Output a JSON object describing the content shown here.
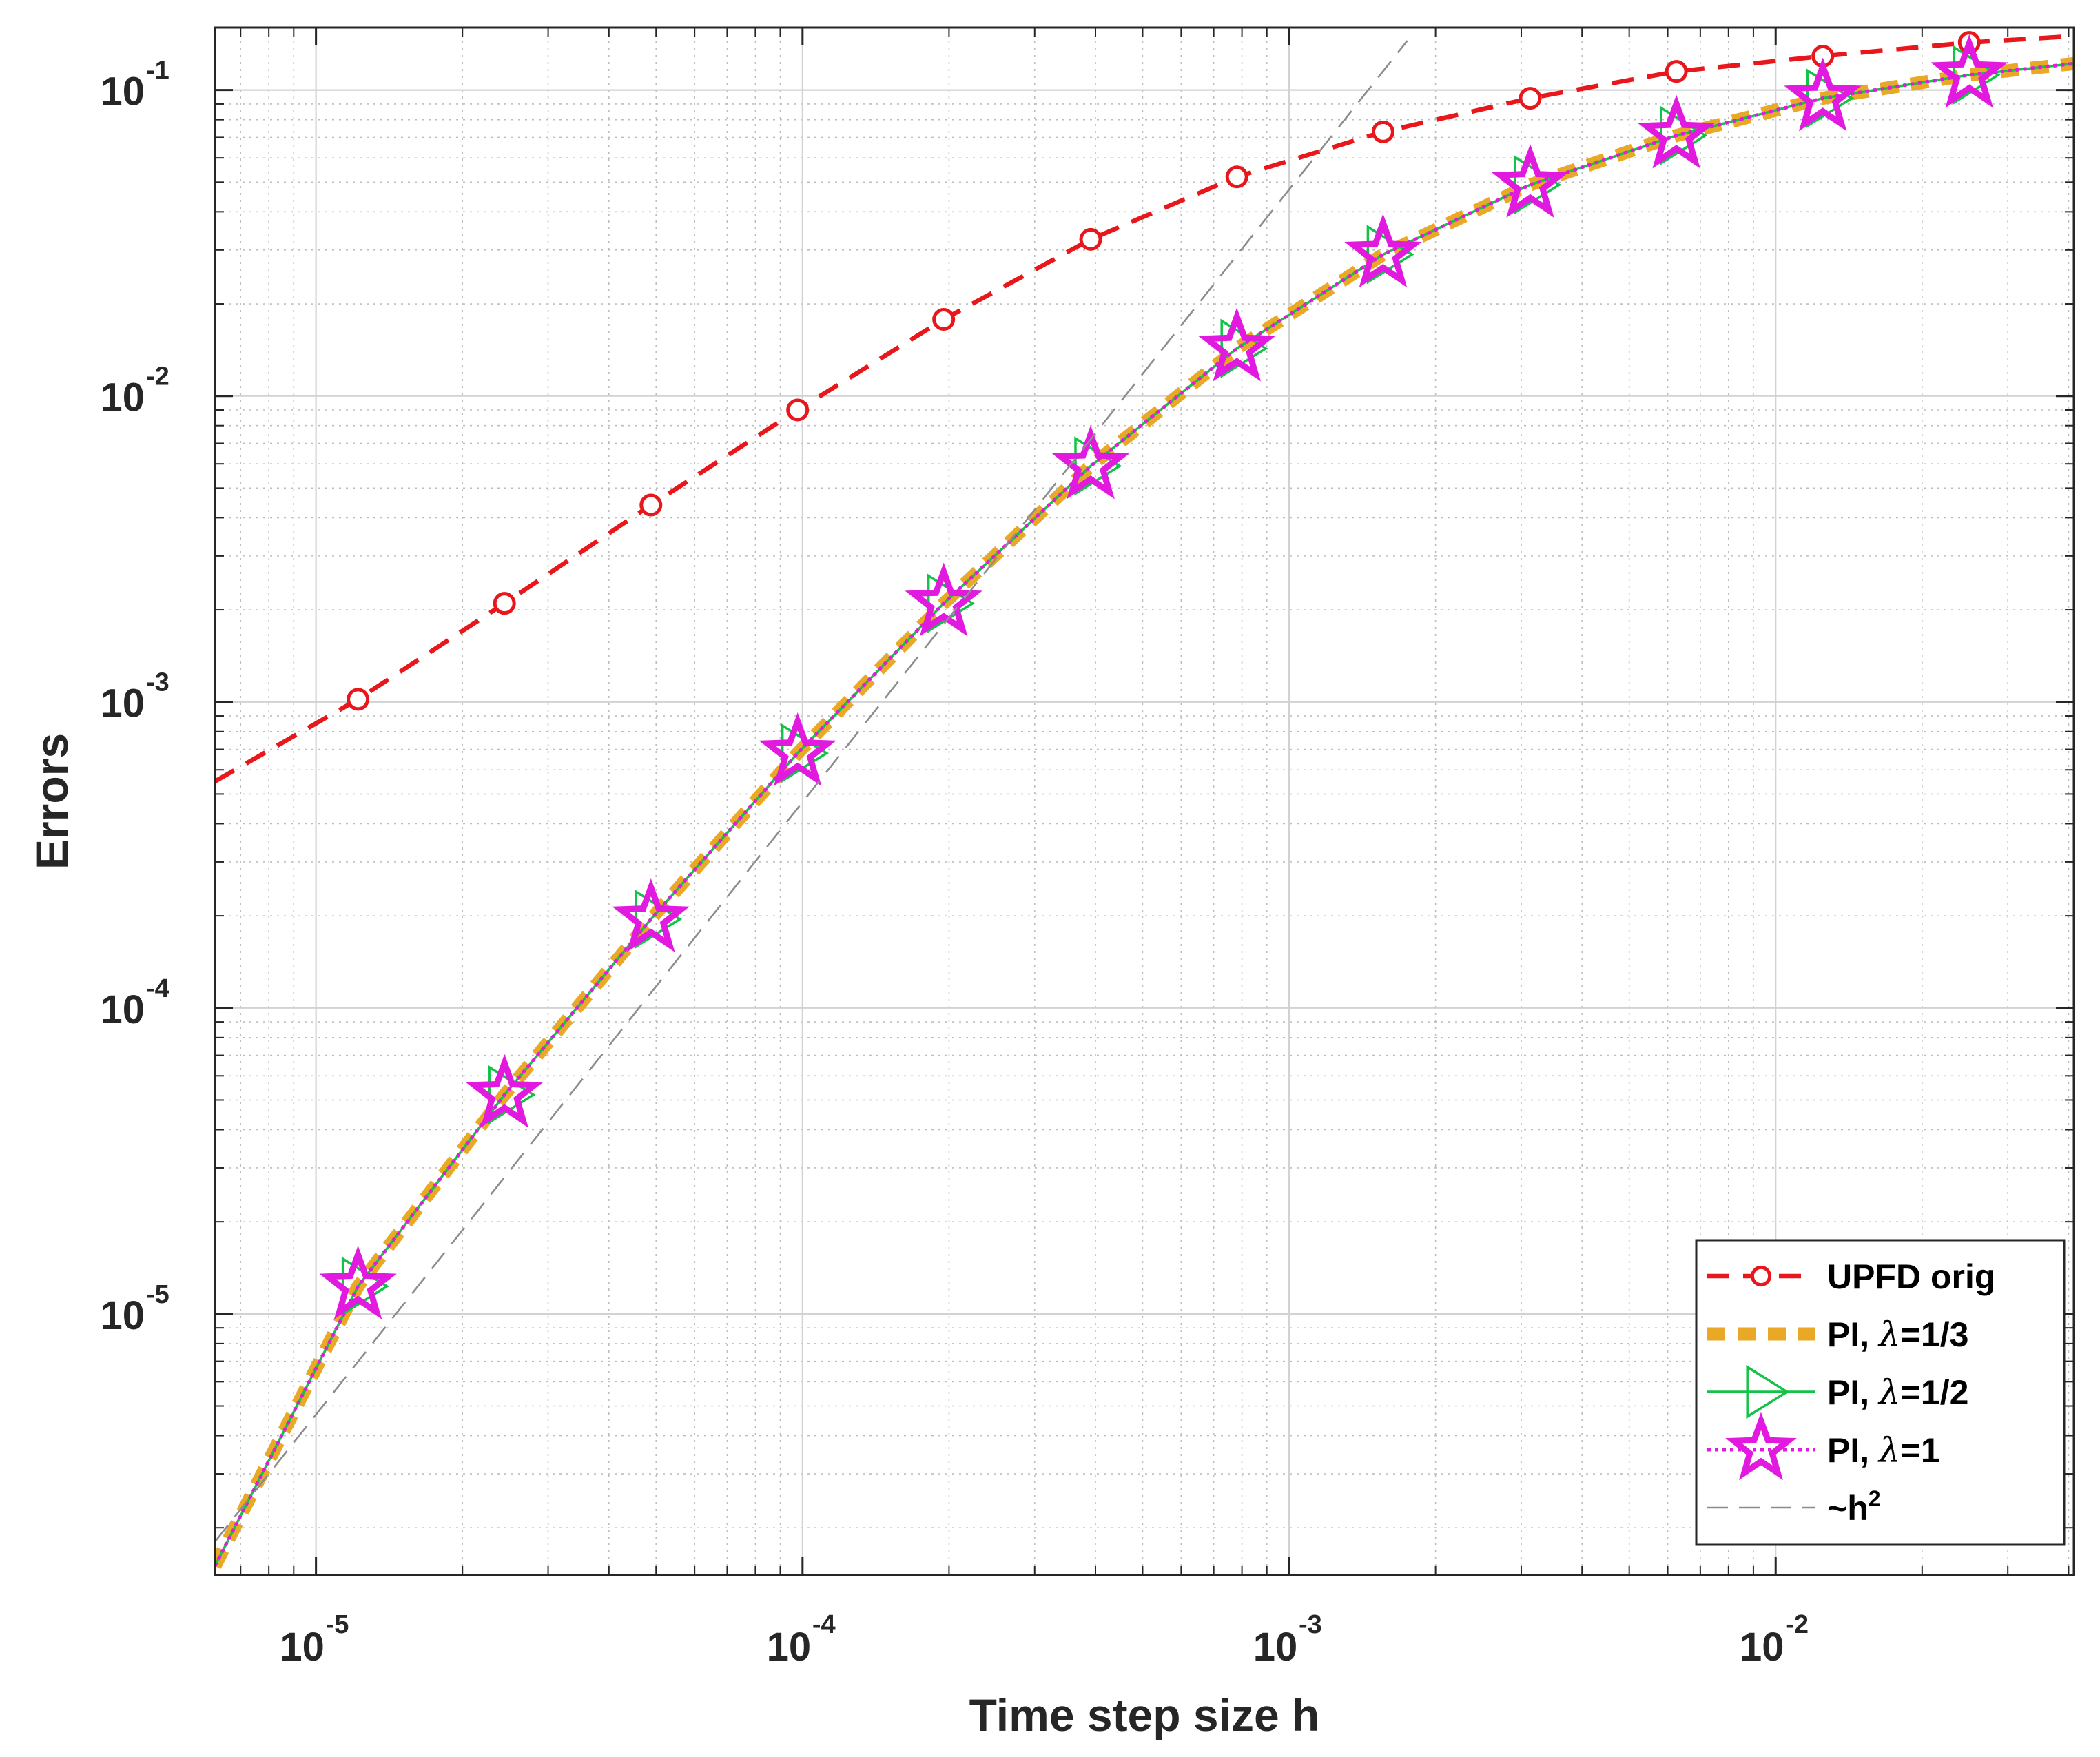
{
  "chart_data": {
    "type": "line",
    "scale": {
      "x": "log",
      "y": "log"
    },
    "xlabel": "Time step size h",
    "ylabel": "Errors",
    "xlim": [
      6.2e-06,
      0.041
    ],
    "ylim": [
      1.4e-06,
      0.16
    ],
    "grid": true,
    "minor_grid": true,
    "legend_position": "bottom-right",
    "x_ticks": [
      {
        "value": 1e-05,
        "mantissa": "10",
        "exponent": "-5"
      },
      {
        "value": 0.0001,
        "mantissa": "10",
        "exponent": "-4"
      },
      {
        "value": 0.001,
        "mantissa": "10",
        "exponent": "-3"
      },
      {
        "value": 0.01,
        "mantissa": "10",
        "exponent": "-2"
      }
    ],
    "y_ticks": [
      {
        "value": 1e-05,
        "mantissa": "10",
        "exponent": "-5"
      },
      {
        "value": 0.0001,
        "mantissa": "10",
        "exponent": "-4"
      },
      {
        "value": 0.001,
        "mantissa": "10",
        "exponent": "-3"
      },
      {
        "value": 0.01,
        "mantissa": "10",
        "exponent": "-2"
      },
      {
        "value": 0.1,
        "mantissa": "10",
        "exponent": "-1"
      }
    ],
    "series": [
      {
        "name": "UPFD orig",
        "color": "#e8171c",
        "line_style": "dashed",
        "marker": "circle",
        "line_x": [
          6.2e-06,
          1.22e-05,
          2.44e-05,
          4.88e-05,
          9.77e-05,
          0.000195,
          0.000391,
          0.000781,
          0.00156,
          0.00313,
          0.00625,
          0.0125,
          0.025,
          0.041
        ],
        "line_y": [
          0.00055,
          0.00102,
          0.0021,
          0.0044,
          0.009,
          0.0178,
          0.0325,
          0.052,
          0.073,
          0.094,
          0.115,
          0.129,
          0.143,
          0.15
        ],
        "marker_x": [
          1.22e-05,
          2.44e-05,
          4.88e-05,
          9.77e-05,
          0.000195,
          0.000391,
          0.000781,
          0.00156,
          0.00313,
          0.00625,
          0.0125,
          0.025
        ],
        "marker_y": [
          0.00102,
          0.0021,
          0.0044,
          0.009,
          0.0178,
          0.0325,
          0.052,
          0.073,
          0.094,
          0.115,
          0.129,
          0.143
        ]
      },
      {
        "name": "PI, λ=1/3",
        "legend_prefix": "PI, ",
        "legend_symbol": "λ",
        "legend_suffix": "=1/3",
        "color": "#e9a825",
        "line_style": "thick-dashed",
        "marker": "none",
        "line_x": [
          6.2e-06,
          1.22e-05,
          2.44e-05,
          4.88e-05,
          9.77e-05,
          0.000195,
          0.000391,
          0.000781,
          0.00156,
          0.00313,
          0.00625,
          0.0125,
          0.025,
          0.041
        ],
        "line_y": [
          1.5e-06,
          1.23e-05,
          5.2e-05,
          0.000195,
          0.00068,
          0.0021,
          0.0059,
          0.0143,
          0.029,
          0.049,
          0.071,
          0.094,
          0.112,
          0.122
        ],
        "marker_x": [],
        "marker_y": []
      },
      {
        "name": "PI, λ=1/2",
        "legend_prefix": "PI, ",
        "legend_symbol": "λ",
        "legend_suffix": "=1/2",
        "color": "#14c24a",
        "line_style": "solid",
        "marker": "triangle-right",
        "line_x": [
          6.2e-06,
          1.22e-05,
          2.44e-05,
          4.88e-05,
          9.77e-05,
          0.000195,
          0.000391,
          0.000781,
          0.00156,
          0.00313,
          0.00625,
          0.0125,
          0.025,
          0.041
        ],
        "line_y": [
          1.5e-06,
          1.23e-05,
          5.2e-05,
          0.000195,
          0.00068,
          0.0021,
          0.0059,
          0.0143,
          0.029,
          0.049,
          0.071,
          0.094,
          0.112,
          0.122
        ],
        "marker_x": [
          1.22e-05,
          2.44e-05,
          4.88e-05,
          9.77e-05,
          0.000195,
          0.000391,
          0.000781,
          0.00156,
          0.00313,
          0.00625,
          0.0125,
          0.025
        ],
        "marker_y": [
          1.23e-05,
          5.2e-05,
          0.000195,
          0.00068,
          0.0021,
          0.0059,
          0.0143,
          0.029,
          0.049,
          0.071,
          0.094,
          0.112
        ]
      },
      {
        "name": "PI, λ=1",
        "legend_prefix": "PI, ",
        "legend_symbol": "λ",
        "legend_suffix": "=1",
        "color": "#e21ae0",
        "line_style": "dotted",
        "marker": "star",
        "line_x": [
          6.2e-06,
          1.22e-05,
          2.44e-05,
          4.88e-05,
          9.77e-05,
          0.000195,
          0.000391,
          0.000781,
          0.00156,
          0.00313,
          0.00625,
          0.0125,
          0.025,
          0.041
        ],
        "line_y": [
          1.5e-06,
          1.23e-05,
          5.2e-05,
          0.000195,
          0.00068,
          0.0021,
          0.0059,
          0.0143,
          0.029,
          0.049,
          0.071,
          0.094,
          0.112,
          0.122
        ],
        "marker_x": [
          1.22e-05,
          2.44e-05,
          4.88e-05,
          9.77e-05,
          0.000195,
          0.000391,
          0.000781,
          0.00156,
          0.00313,
          0.00625,
          0.0125,
          0.025
        ],
        "marker_y": [
          1.23e-05,
          5.2e-05,
          0.000195,
          0.00068,
          0.0021,
          0.0059,
          0.0143,
          0.029,
          0.049,
          0.071,
          0.094,
          0.112
        ]
      },
      {
        "name": "~h^2",
        "legend_prefix": "~h",
        "legend_sup": "2",
        "color": "#8c8c8c",
        "line_style": "thin-dashed",
        "marker": "none",
        "line_x": [
          6.2e-06,
          0.00175
        ],
        "line_y": [
          1.8e-06,
          0.145
        ],
        "marker_x": [],
        "marker_y": []
      }
    ]
  }
}
